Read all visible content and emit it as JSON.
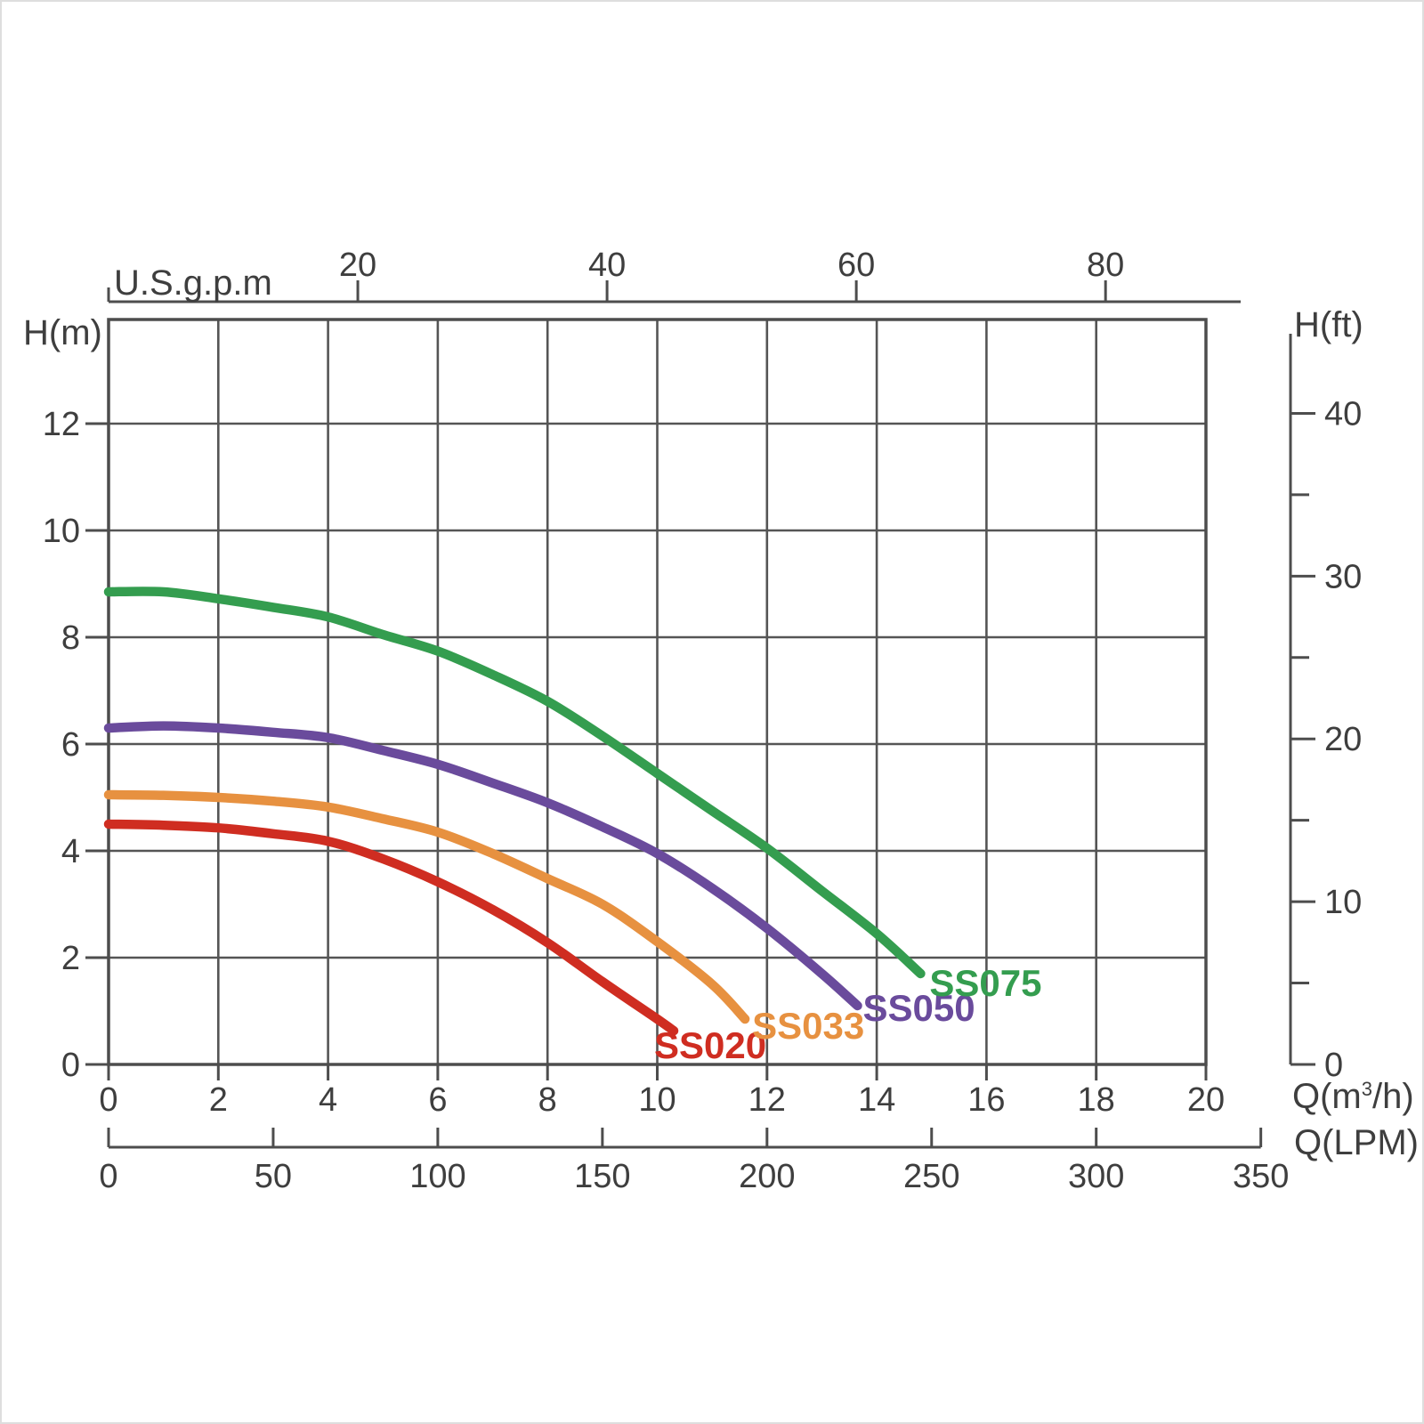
{
  "chart_data": {
    "type": "line",
    "title": "",
    "grid": true,
    "colors": {
      "axis": "#4d4d4d",
      "grid": "#555555",
      "text": "#3e3e3e"
    },
    "axes": {
      "m3h": {
        "label_prefix": "Q(m",
        "label_sup": "3",
        "label_suffix": "/h)",
        "min": 0,
        "max": 20,
        "ticks": [
          0,
          2,
          4,
          6,
          8,
          10,
          12,
          14,
          16,
          18,
          20
        ]
      },
      "h_m": {
        "label": "H(m)",
        "min": 0,
        "max": 14,
        "ticks": [
          0,
          2,
          4,
          6,
          8,
          10,
          12
        ]
      },
      "gpm": {
        "label": "U.S.g.p.m",
        "ticks": [
          20,
          40,
          60,
          80
        ],
        "m3h_per_unit": 0.227125
      },
      "lpm": {
        "label": "Q(LPM)",
        "ticks": [
          0,
          50,
          100,
          150,
          200,
          250,
          300,
          350
        ],
        "m3h_per_unit": 0.06
      },
      "h_ft": {
        "label": "H(ft)",
        "ticks_major": [
          0,
          10,
          20,
          30,
          40
        ],
        "ticks_minor": [
          5,
          15,
          25,
          35
        ],
        "m_per_unit": 0.3048
      }
    },
    "series": [
      {
        "name": "SS020",
        "color": "#cf2d21",
        "label_dx": -22,
        "label_dy": -4,
        "points": [
          [
            0,
            4.5
          ],
          [
            1,
            4.48
          ],
          [
            2,
            4.43
          ],
          [
            3,
            4.32
          ],
          [
            4,
            4.18
          ],
          [
            5,
            3.85
          ],
          [
            6,
            3.42
          ],
          [
            7,
            2.9
          ],
          [
            8,
            2.28
          ],
          [
            9,
            1.55
          ],
          [
            10,
            0.85
          ],
          [
            10.3,
            0.63
          ]
        ]
      },
      {
        "name": "SS033",
        "color": "#e79140",
        "label_dx": 8,
        "label_dy": -13,
        "points": [
          [
            0,
            5.05
          ],
          [
            1,
            5.04
          ],
          [
            2,
            5.0
          ],
          [
            3,
            4.93
          ],
          [
            4,
            4.82
          ],
          [
            5,
            4.6
          ],
          [
            6,
            4.35
          ],
          [
            7,
            3.95
          ],
          [
            8,
            3.48
          ],
          [
            9,
            3.0
          ],
          [
            10,
            2.3
          ],
          [
            11,
            1.5
          ],
          [
            11.6,
            0.85
          ]
        ]
      },
      {
        "name": "SS050",
        "color": "#6a4b9c",
        "label_dx": 6,
        "label_dy": -18,
        "points": [
          [
            0,
            6.3
          ],
          [
            1,
            6.34
          ],
          [
            2,
            6.3
          ],
          [
            3,
            6.22
          ],
          [
            4,
            6.12
          ],
          [
            5,
            5.88
          ],
          [
            6,
            5.62
          ],
          [
            7,
            5.27
          ],
          [
            8,
            4.9
          ],
          [
            9,
            4.45
          ],
          [
            10,
            3.95
          ],
          [
            11,
            3.3
          ],
          [
            12,
            2.55
          ],
          [
            13,
            1.7
          ],
          [
            13.65,
            1.1
          ]
        ]
      },
      {
        "name": "SS075",
        "color": "#349d4f",
        "label_dx": 10,
        "label_dy": -10,
        "points": [
          [
            0,
            8.85
          ],
          [
            1,
            8.85
          ],
          [
            2,
            8.72
          ],
          [
            3,
            8.56
          ],
          [
            4,
            8.38
          ],
          [
            5,
            8.05
          ],
          [
            6,
            7.74
          ],
          [
            7,
            7.3
          ],
          [
            8,
            6.8
          ],
          [
            9,
            6.15
          ],
          [
            10,
            5.45
          ],
          [
            11,
            4.75
          ],
          [
            12,
            4.05
          ],
          [
            13,
            3.25
          ],
          [
            14,
            2.45
          ],
          [
            14.8,
            1.7
          ]
        ]
      }
    ]
  }
}
